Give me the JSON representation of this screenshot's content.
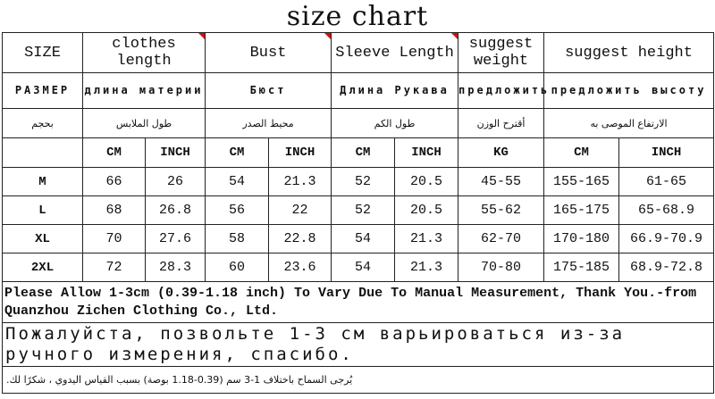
{
  "title": "size chart",
  "accent_color": "#d01010",
  "headers": {
    "en": [
      "SIZE",
      "clothes length",
      "Bust",
      "Sleeve Length",
      "suggest weight",
      "suggest height"
    ],
    "ru": [
      "РАЗМЕР",
      "длина материи",
      "Бюст",
      "Длина Рукава",
      "предложить",
      "предложить высоту"
    ],
    "ar": [
      "بحجم",
      "طول الملابس",
      "محيط الصدر",
      "طول الكم",
      "أقترح الوزن",
      "الارتفاع الموصى به"
    ]
  },
  "units": [
    "CM",
    "INCH",
    "CM",
    "INCH",
    "CM",
    "INCH",
    "KG",
    "CM",
    "INCH"
  ],
  "rows": [
    [
      "M",
      "66",
      "26",
      "54",
      "21.3",
      "52",
      "20.5",
      "45-55",
      "155-165",
      "61-65"
    ],
    [
      "L",
      "68",
      "26.8",
      "56",
      "22",
      "52",
      "20.5",
      "55-62",
      "165-175",
      "65-68.9"
    ],
    [
      "XL",
      "70",
      "27.6",
      "58",
      "22.8",
      "54",
      "21.3",
      "62-70",
      "170-180",
      "66.9-70.9"
    ],
    [
      "2XL",
      "72",
      "28.3",
      "60",
      "23.6",
      "54",
      "21.3",
      "70-80",
      "175-185",
      "68.9-72.8"
    ]
  ],
  "notes": {
    "en": "Please Allow 1-3cm (0.39-1.18 inch) To Vary Due To Manual Measurement, Thank You.-from Quanzhou Zichen Clothing Co., Ltd.",
    "ru": "Пожалуйста, позвольте 1-3 см варьироваться из-за ручного измерения, спасибо.",
    "ar": "يُرجى السماح باختلاف 1-3 سم (0.39-1.18 بوصة) بسبب القياس اليدوي ، شكرًا لك."
  }
}
